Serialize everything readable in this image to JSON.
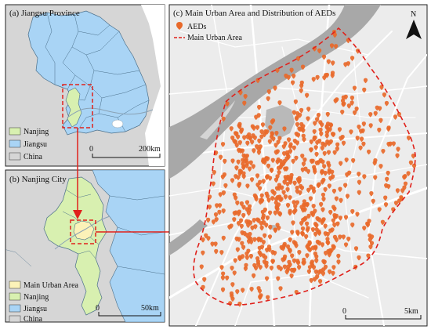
{
  "panels": {
    "a": {
      "title": "(a) Jiangsu Province",
      "legend": [
        "Nanjing",
        "Jiangsu",
        "China"
      ],
      "scale": {
        "start": "0",
        "end": "200km"
      }
    },
    "b": {
      "title": "(b) Nanjing City",
      "legend": [
        "Main Urban Area",
        "Nanjing",
        "Jiangsu",
        "China"
      ],
      "scale": {
        "start": "0",
        "end": "50km"
      }
    },
    "c": {
      "title": "(c) Main Urban Area and Distribution of AEDs",
      "legend": [
        "AEDs",
        "Main Urban Area"
      ],
      "scale": {
        "start": "0",
        "end": "5km"
      },
      "north": "N"
    }
  },
  "colors": {
    "nanjing": "#d8f0b0",
    "jiangsu": "#a9d4f5",
    "china": "#d6d6d6",
    "main_urban_area": "#fbf2b8",
    "aed": "#e8692a",
    "boundary": "#e0211b",
    "river": "#a8a8a8",
    "road": "#ffffff",
    "urban_bg": "#ececec"
  },
  "icons": {
    "aed": "map-pin-icon",
    "north": "north-arrow-icon"
  }
}
